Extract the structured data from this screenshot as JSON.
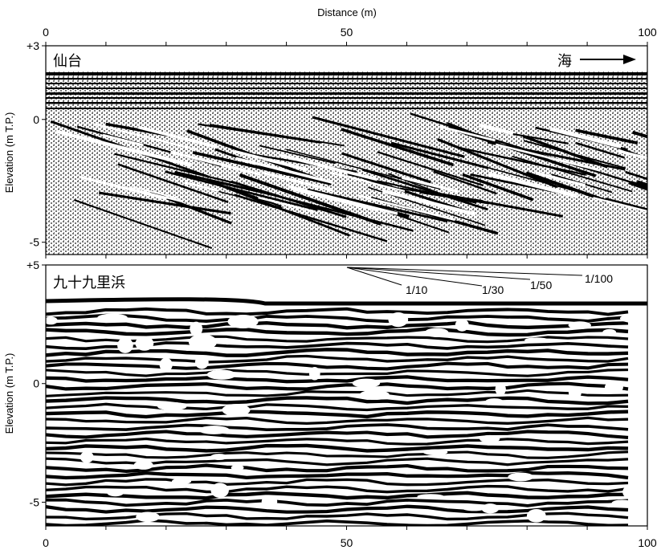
{
  "chart_data": [
    {
      "type": "heatmap",
      "panel_label": "仙台",
      "xlabel": "Distance (m)",
      "ylabel": "Elevation (m T.P.)",
      "xlim": [
        0,
        100
      ],
      "ylim": [
        -5.5,
        3
      ],
      "x_ticks": [
        0,
        50,
        100
      ],
      "x_tick_labels": [
        "0",
        "50",
        "100"
      ],
      "y_ticks": [
        3,
        0,
        -5
      ],
      "y_tick_labels": [
        "+3",
        "0",
        "-5"
      ],
      "annotation": {
        "label": "海",
        "arrow": "right"
      }
    },
    {
      "type": "heatmap",
      "panel_label": "九十九里浜",
      "xlabel": "",
      "ylabel": "Elevation (m T.P.)",
      "xlim": [
        0,
        100
      ],
      "ylim": [
        -6,
        5
      ],
      "x_ticks": [
        0,
        50,
        100
      ],
      "x_tick_labels": [
        "0",
        "50",
        "100"
      ],
      "y_ticks": [
        5,
        0,
        -5
      ],
      "y_tick_labels": [
        "+5",
        "0",
        "-5"
      ],
      "slope_scale": [
        "1/10",
        "1/30",
        "1/50",
        "1/100"
      ]
    }
  ],
  "colors": {
    "ink": "#000000",
    "paper": "#ffffff"
  }
}
